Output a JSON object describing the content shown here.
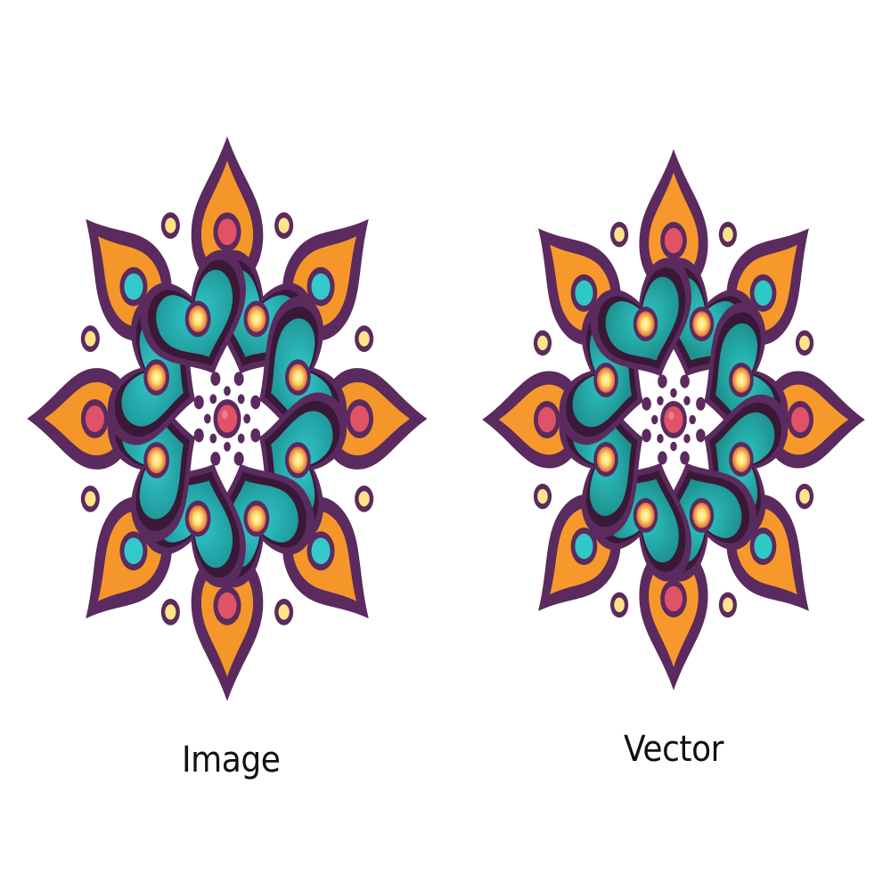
{
  "panels": [
    {
      "label": "Image",
      "image": "mandala-raster",
      "colors": {
        "outline": "#5b2a5e",
        "orange": "#f5962a",
        "teal": "#33c9cd",
        "teal_dark": "#1a8a8a",
        "plum_dark": "#3a1838",
        "red": "#e05266",
        "glow": "#ffe070",
        "glow_outer": "#e0683a",
        "dot_fill": "#fde38a",
        "center_dot": "#5b2a5e"
      }
    },
    {
      "label": "Vector",
      "image": "mandala-vector",
      "colors": {
        "outline": "#5b2a5e",
        "orange": "#f7982c",
        "teal": "#2fc8c6",
        "teal_dark": "#17807e",
        "plum_dark": "#3a1838",
        "red": "#e05266",
        "glow": "#ffe070",
        "glow_outer": "#e0683a",
        "dot_fill": "#fde38a",
        "center_dot": "#5b2a5e"
      }
    }
  ]
}
